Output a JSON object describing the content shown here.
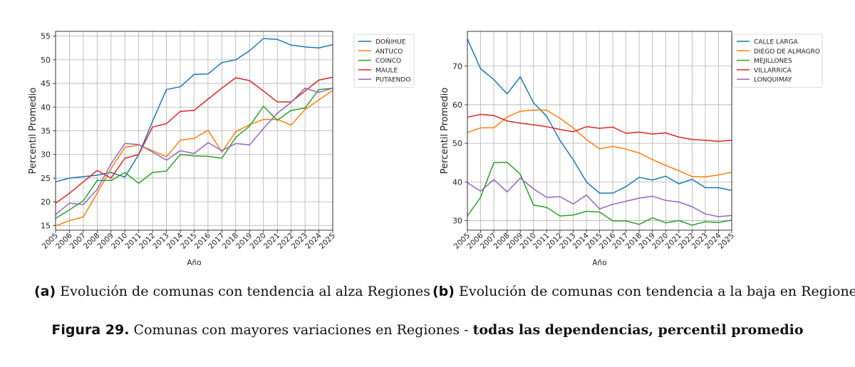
{
  "chart_data": [
    {
      "id": "a",
      "type": "line",
      "xlabel": "Año",
      "ylabel": "Percentil Promedio",
      "x": [
        2005,
        2006,
        2007,
        2008,
        2009,
        2010,
        2011,
        2012,
        2013,
        2014,
        2015,
        2016,
        2017,
        2018,
        2019,
        2020,
        2021,
        2022,
        2023,
        2024,
        2025
      ],
      "xlim": [
        2005,
        2025
      ],
      "ylim": [
        14,
        56
      ],
      "yticks": [
        15,
        20,
        25,
        30,
        35,
        40,
        45,
        50,
        55
      ],
      "grid": true,
      "legend": "outside-right",
      "series": [
        {
          "name": "DOÑIHUE",
          "color": "#1f77b4",
          "values": [
            24.2,
            25.0,
            25.3,
            25.6,
            26.2,
            25.2,
            30.0,
            37.0,
            43.7,
            44.3,
            46.9,
            47.0,
            49.4,
            50.0,
            51.9,
            54.5,
            54.3,
            53.1,
            52.7,
            52.5,
            53.2
          ]
        },
        {
          "name": "ANTUCO",
          "color": "#ff7f0e",
          "values": [
            14.9,
            16.0,
            16.8,
            21.8,
            27.0,
            31.5,
            32.0,
            30.8,
            29.5,
            33.0,
            33.4,
            35.1,
            30.5,
            34.8,
            36.3,
            37.4,
            37.4,
            36.2,
            39.5,
            41.5,
            43.5
          ]
        },
        {
          "name": "COINCO",
          "color": "#2ca02c",
          "values": [
            16.5,
            18.3,
            20.2,
            24.5,
            24.5,
            26.2,
            23.9,
            26.2,
            26.5,
            30.0,
            29.7,
            29.6,
            29.2,
            33.6,
            36.0,
            40.2,
            37.2,
            39.3,
            39.8,
            43.7,
            44.0
          ]
        },
        {
          "name": "MAULE",
          "color": "#d62728",
          "values": [
            19.7,
            21.8,
            24.2,
            26.6,
            25.0,
            29.2,
            30.0,
            35.8,
            36.5,
            39.1,
            39.3,
            41.7,
            44.0,
            46.2,
            45.6,
            43.4,
            41.1,
            41.1,
            43.4,
            45.7,
            46.3
          ]
        },
        {
          "name": "PUTAENDO",
          "color": "#9467bd",
          "values": [
            17.3,
            19.7,
            19.4,
            22.6,
            28.0,
            32.3,
            32.1,
            30.5,
            28.8,
            30.8,
            30.2,
            32.5,
            30.8,
            32.3,
            32.0,
            35.5,
            38.7,
            41.0,
            44.0,
            43.1,
            44.0
          ]
        }
      ]
    },
    {
      "id": "b",
      "type": "line",
      "xlabel": "Año",
      "ylabel": "Percentil Promedio",
      "x": [
        2005,
        2006,
        2007,
        2008,
        2009,
        2010,
        2011,
        2012,
        2013,
        2014,
        2015,
        2016,
        2017,
        2018,
        2019,
        2020,
        2021,
        2022,
        2023,
        2024,
        2025
      ],
      "xlim": [
        2005,
        2025
      ],
      "ylim": [
        27.5,
        79
      ],
      "yticks": [
        30,
        40,
        50,
        60,
        70
      ],
      "grid": true,
      "legend": "outside-right",
      "series": [
        {
          "name": "CALLE LARGA",
          "color": "#1f77b4",
          "values": [
            77.0,
            69.3,
            66.5,
            62.8,
            67.2,
            60.5,
            57.0,
            50.8,
            45.8,
            40.0,
            37.1,
            37.1,
            38.8,
            41.2,
            40.5,
            41.5,
            39.5,
            40.7,
            38.5,
            38.5,
            37.8
          ]
        },
        {
          "name": "DIEGO DE ALMAGRO",
          "color": "#ff7f0e",
          "values": [
            52.8,
            54.0,
            54.0,
            56.8,
            58.3,
            58.6,
            58.6,
            56.5,
            54.0,
            51.0,
            48.6,
            49.2,
            48.5,
            47.5,
            45.8,
            44.3,
            42.9,
            41.4,
            41.3,
            41.8,
            42.5
          ]
        },
        {
          "name": "MEJILLONES",
          "color": "#2ca02c",
          "values": [
            31.2,
            36.0,
            45.0,
            45.1,
            42.0,
            34.0,
            33.4,
            31.2,
            31.4,
            32.4,
            32.2,
            29.9,
            29.9,
            29.0,
            30.7,
            29.4,
            30.0,
            28.8,
            29.7,
            29.5,
            30.1
          ]
        },
        {
          "name": "VILLARRICA",
          "color": "#d62728",
          "values": [
            56.8,
            57.5,
            57.2,
            55.8,
            55.2,
            54.8,
            54.3,
            53.6,
            53.0,
            54.3,
            53.9,
            54.2,
            52.6,
            52.9,
            52.4,
            52.7,
            51.6,
            51.0,
            50.8,
            50.5,
            50.8
          ]
        },
        {
          "name": "LONQUIMAY",
          "color": "#9467bd",
          "values": [
            39.8,
            37.6,
            40.6,
            37.4,
            41.0,
            38.2,
            36.0,
            36.2,
            34.3,
            36.6,
            33.0,
            34.2,
            35.0,
            35.8,
            36.3,
            35.2,
            34.8,
            33.6,
            31.7,
            31.0,
            31.3
          ]
        }
      ]
    }
  ],
  "captions": {
    "a_label": "(a)",
    "a_text": " Evolución de comunas con tendencia al alza Regiones",
    "b_label": "(b)",
    "b_text": " Evolución de comunas con tendencia a la baja en Regiones",
    "figure_label": "Figura 29.",
    "figure_text": " Comunas con mayores variaciones en Regiones - ",
    "figure_strong": "todas las dependencias, percentil promedio"
  }
}
